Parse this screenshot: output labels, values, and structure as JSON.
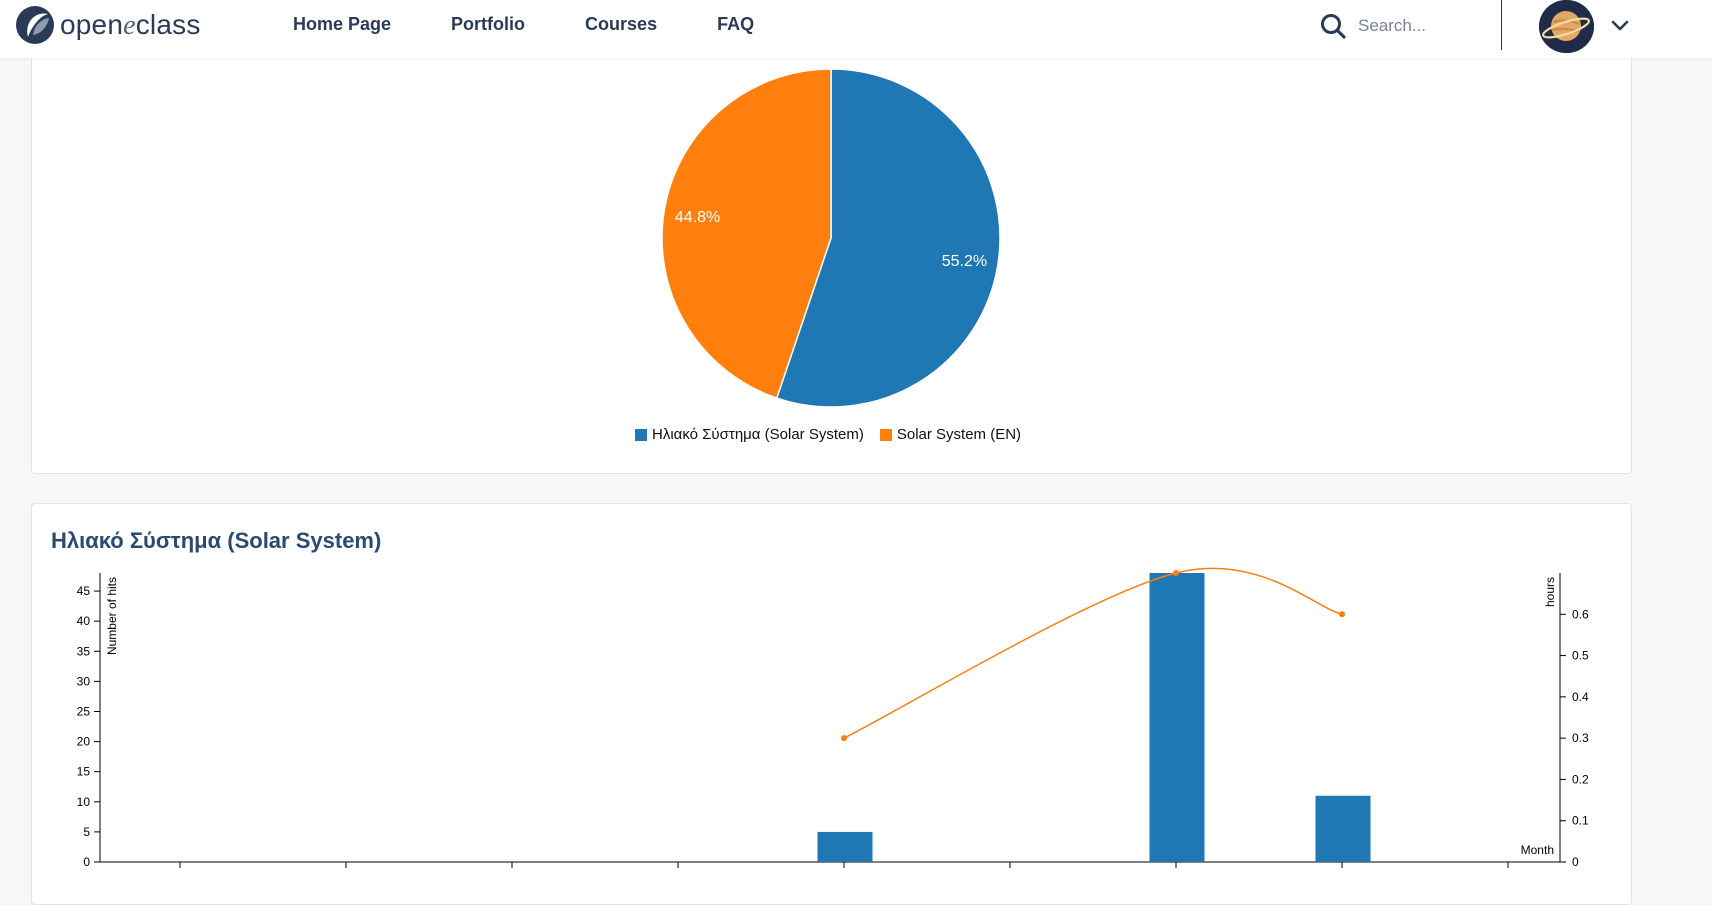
{
  "header": {
    "logo_text_pre": "open",
    "logo_text_e": "e",
    "logo_text_post": "class",
    "nav": [
      {
        "label": "Home Page"
      },
      {
        "label": "Portfolio"
      },
      {
        "label": "Courses"
      },
      {
        "label": "FAQ"
      }
    ],
    "search": {
      "placeholder": "Search...",
      "value": ""
    }
  },
  "colors": {
    "blue": "#1f77b4",
    "orange": "#ff7f0e"
  },
  "pie_section": {
    "legend": [
      "Ηλιακό Σύστημα (Solar System)",
      "Solar System (EN)"
    ]
  },
  "course_section": {
    "title": "Ηλιακό Σύστημα (Solar System)",
    "left_axis_label": "Number of hits",
    "right_axis_label": "hours",
    "x_axis_label": "Month"
  },
  "chart_data": [
    {
      "type": "pie",
      "labels": [
        "Ηλιακό Σύστημα (Solar System)",
        "Solar System (EN)"
      ],
      "values": [
        55.2,
        44.8
      ],
      "data_labels": [
        "55.2%",
        "44.8%"
      ],
      "legend_position": "bottom"
    },
    {
      "type": "bar",
      "series": [
        {
          "name": "Number of hits",
          "axis": "left",
          "type": "bar",
          "values": [
            0,
            0,
            0,
            0,
            5,
            0,
            48,
            11,
            0
          ]
        },
        {
          "name": "hours",
          "axis": "right",
          "type": "line",
          "values": [
            null,
            null,
            null,
            null,
            0.3,
            null,
            0.7,
            0.6,
            null
          ]
        }
      ],
      "ylabel": "Number of hits",
      "y2label": "hours",
      "xlabel": "Month",
      "left_ticks": [
        "0",
        "5",
        "10",
        "15",
        "20",
        "25",
        "30",
        "35",
        "40",
        "45"
      ],
      "right_ticks": [
        "0",
        "0.1",
        "0.2",
        "0.3",
        "0.4",
        "0.5",
        "0.6"
      ],
      "ylim": [
        0,
        48
      ],
      "y2lim": [
        0,
        0.7
      ]
    }
  ]
}
